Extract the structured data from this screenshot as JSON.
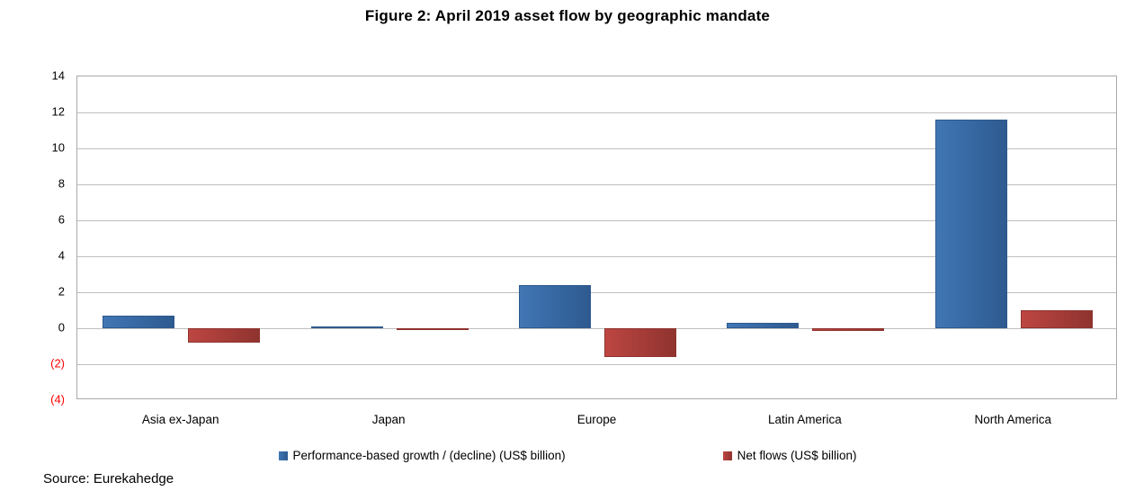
{
  "title": "Figure 2: April 2019 asset flow by geographic mandate",
  "source": "Source: Eurekahedge",
  "colors": {
    "grid": "#bfbfbf",
    "negative_tick": "#fe0000",
    "series_blue": "#4076b4",
    "series_blue_dark": "#2e5a8f",
    "series_red": "#bd4642",
    "series_red_dark": "#8f332f"
  },
  "chart_data": {
    "type": "bar",
    "title": "Figure 2: April 2019 asset flow by geographic mandate",
    "categories": [
      "Asia ex-Japan",
      "Japan",
      "Europe",
      "Latin America",
      "North America"
    ],
    "series": [
      {
        "name": "Performance-based growth / (decline) (US$ billion)",
        "color": "#4076b4",
        "color_dark": "#2e5a8f",
        "values": [
          0.7,
          0.1,
          2.4,
          0.3,
          11.6
        ]
      },
      {
        "name": "Net flows (US$ billion)",
        "color": "#bd4642",
        "color_dark": "#8f332f",
        "values": [
          -0.8,
          -0.1,
          -1.6,
          -0.15,
          1.0
        ]
      }
    ],
    "xlabel": "",
    "ylabel": "",
    "ylim": [
      -4,
      14
    ],
    "ytick_step": 2,
    "grid": true,
    "legend_position": "bottom",
    "negative_tick_format": "parentheses-red"
  }
}
